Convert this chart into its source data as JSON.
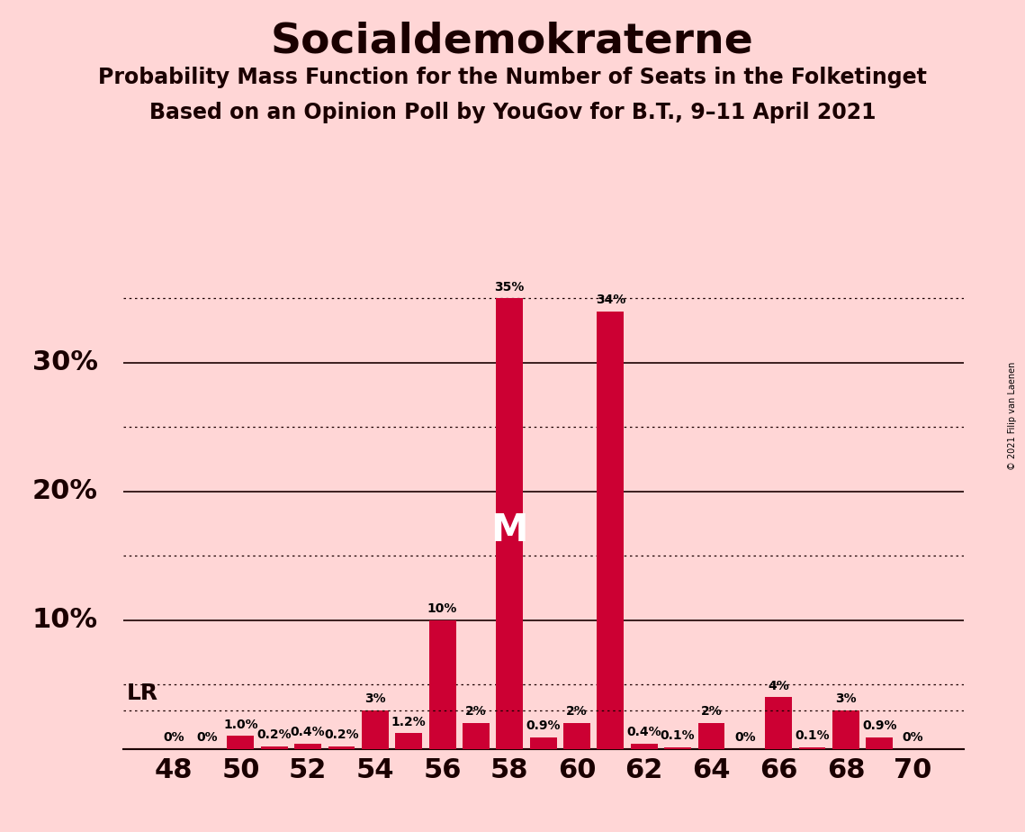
{
  "title": "Socialdemokraterne",
  "subtitle1": "Probability Mass Function for the Number of Seats in the Folketinget",
  "subtitle2": "Based on an Opinion Poll by YouGov for B.T., 9–11 April 2021",
  "copyright": "© 2021 Filip van Laenen",
  "seats": [
    48,
    49,
    50,
    51,
    52,
    53,
    54,
    55,
    56,
    57,
    58,
    59,
    60,
    61,
    62,
    63,
    64,
    65,
    66,
    67,
    68,
    69,
    70
  ],
  "values": [
    0.0,
    0.0,
    1.0,
    0.2,
    0.4,
    0.2,
    3.0,
    1.2,
    10.0,
    2.0,
    35.0,
    0.9,
    2.0,
    34.0,
    0.4,
    0.1,
    2.0,
    0.0,
    4.0,
    0.1,
    3.0,
    0.9,
    0.0
  ],
  "labels": [
    "0%",
    "0%",
    "1.0%",
    "0.2%",
    "0.4%",
    "0.2%",
    "3%",
    "1.2%",
    "10%",
    "2%",
    "35%",
    "0.9%",
    "2%",
    "34%",
    "0.4%",
    "0.1%",
    "2%",
    "0%",
    "4%",
    "0.1%",
    "3%",
    "0.9%",
    "0%"
  ],
  "bar_color": "#CC0033",
  "median_seat": 58,
  "lr_value": 3.0,
  "background_color": "#FFD6D6",
  "solid_yticks": [
    0,
    10,
    20,
    30
  ],
  "dotted_yticks": [
    5,
    15,
    25,
    35
  ],
  "ylim": [
    0,
    37.5
  ],
  "xlabel_seats": [
    48,
    50,
    52,
    54,
    56,
    58,
    60,
    62,
    64,
    66,
    68,
    70
  ],
  "title_color": "#1a0000",
  "label_fontsize": 10,
  "tick_fontsize": 22,
  "title_fontsize": 34,
  "subtitle_fontsize": 17
}
